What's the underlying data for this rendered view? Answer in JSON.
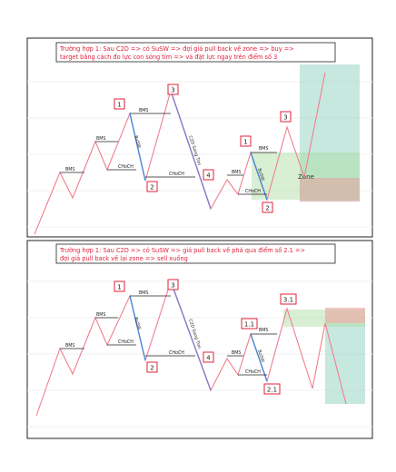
{
  "panels": [
    {
      "caption_lines": [
        "Trường hợp 1: Sau C2D => có SuSW => đợi giá pull back về zone => buy =>",
        "target bằng cách đo lực con sóng tím => và đặt lực ngay trên điểm số 3"
      ],
      "badges": [
        "1",
        "2",
        "3",
        "4",
        "1",
        "2",
        "3"
      ],
      "structure_labels": [
        "BMS",
        "BMS",
        "BMS",
        "BMS",
        "BMS",
        "CHoCH",
        "CHoCH",
        "CHoCH",
        "BuSW",
        "C2D Song Tim",
        "BuSW"
      ],
      "zone_label": "Zone"
    },
    {
      "caption_lines": [
        "Trường hợp 1: Sau C2D => có SuSW => giá pull back về phá qua điểm số 2.1 =>",
        "đợi giá pull back về lại zone => sell xuống"
      ],
      "badges": [
        "1",
        "2",
        "3",
        "4",
        "1.1",
        "2.1",
        "3.1"
      ],
      "structure_labels": [
        "BMS",
        "BMS",
        "BMS",
        "BMS",
        "BMS",
        "CHoCH",
        "CHoCH",
        "CHoCH",
        "BuSW",
        "C2D Song Tim",
        "BuSW"
      ]
    }
  ],
  "colors": {
    "price": "#f07f8f",
    "bluewave": "#4a86d8",
    "purplewave": "#8a78c8",
    "teal": "#8fd1bf",
    "green": "#a8dba0",
    "red": "#e8a09a",
    "caption": "#e0203a",
    "border": "#222222"
  }
}
